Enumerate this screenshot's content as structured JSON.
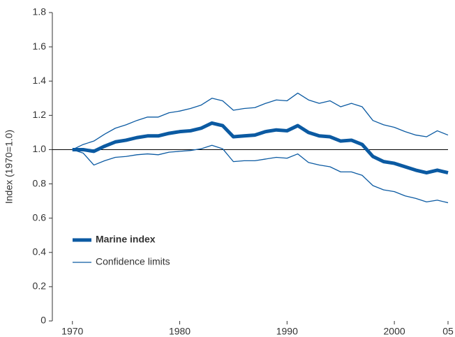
{
  "chart_data": {
    "type": "line",
    "y_label": "Index (1970=1.0)",
    "x": [
      1970,
      1971,
      1972,
      1973,
      1974,
      1975,
      1976,
      1977,
      1978,
      1979,
      1980,
      1981,
      1982,
      1983,
      1984,
      1985,
      1986,
      1987,
      1988,
      1989,
      1990,
      1991,
      1992,
      1993,
      1994,
      1995,
      1996,
      1997,
      1998,
      1999,
      2000,
      2001,
      2002,
      2003,
      2004,
      2005
    ],
    "series": [
      {
        "name": "Marine index",
        "color": "#0b5aa2",
        "values": [
          1.0,
          1.0,
          0.99,
          1.02,
          1.045,
          1.055,
          1.07,
          1.08,
          1.08,
          1.095,
          1.105,
          1.11,
          1.125,
          1.155,
          1.14,
          1.075,
          1.08,
          1.085,
          1.105,
          1.115,
          1.11,
          1.14,
          1.1,
          1.08,
          1.075,
          1.05,
          1.055,
          1.03,
          0.96,
          0.93,
          0.92,
          0.9,
          0.88,
          0.865,
          0.88,
          0.865
        ]
      },
      {
        "name": "Confidence limits",
        "color": "#0b5aa2",
        "upper": [
          1.0,
          1.03,
          1.05,
          1.09,
          1.125,
          1.145,
          1.17,
          1.19,
          1.19,
          1.215,
          1.225,
          1.24,
          1.26,
          1.3,
          1.285,
          1.23,
          1.24,
          1.245,
          1.27,
          1.29,
          1.285,
          1.33,
          1.29,
          1.27,
          1.285,
          1.25,
          1.27,
          1.25,
          1.17,
          1.145,
          1.13,
          1.105,
          1.085,
          1.075,
          1.11,
          1.085
        ],
        "lower": [
          1.0,
          0.98,
          0.91,
          0.935,
          0.955,
          0.96,
          0.97,
          0.975,
          0.97,
          0.985,
          0.99,
          0.995,
          1.005,
          1.025,
          1.005,
          0.93,
          0.935,
          0.935,
          0.945,
          0.955,
          0.95,
          0.975,
          0.925,
          0.91,
          0.9,
          0.87,
          0.87,
          0.85,
          0.79,
          0.765,
          0.755,
          0.73,
          0.715,
          0.695,
          0.705,
          0.69
        ]
      }
    ],
    "reference_line": 1,
    "xlim": [
      1968,
      2005
    ],
    "xticks": [
      1970,
      1980,
      1990,
      2000,
      {
        "value": 2005,
        "label": "05"
      }
    ],
    "ylim": [
      0,
      1.8
    ],
    "yticks": [
      0,
      0.2,
      0.4,
      0.6,
      0.8,
      {
        "value": 1,
        "label": "1.0"
      },
      1.2,
      1.4,
      1.6,
      1.8
    ],
    "legend": "lower left"
  }
}
